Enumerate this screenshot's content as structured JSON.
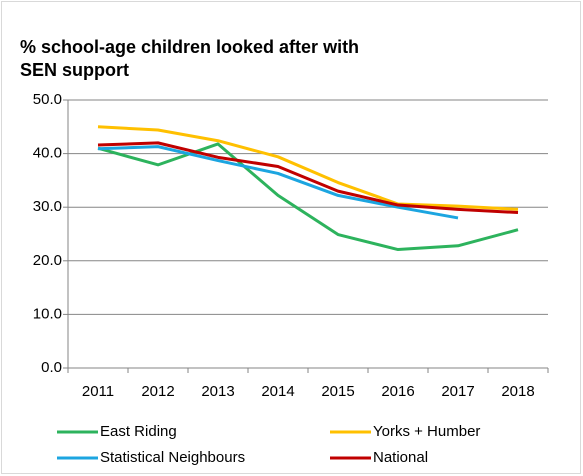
{
  "chart_data": {
    "type": "line",
    "title": "% school-age children looked after with SEN support",
    "categories": [
      "2011",
      "2012",
      "2013",
      "2014",
      "2015",
      "2016",
      "2017",
      "2018"
    ],
    "series": [
      {
        "name": "East Riding",
        "color": "#2db35d",
        "values": [
          41.0,
          37.9,
          41.8,
          32.2,
          24.9,
          22.1,
          22.8,
          25.8
        ]
      },
      {
        "name": "Yorks + Humber",
        "color": "#ffc000",
        "values": [
          45.0,
          44.4,
          42.4,
          39.4,
          34.6,
          30.6,
          30.2,
          29.6
        ]
      },
      {
        "name": "Statistical Neighbours",
        "color": "#1ca5e0",
        "values": [
          40.9,
          41.3,
          38.7,
          36.3,
          32.2,
          30.0,
          28.0,
          null
        ]
      },
      {
        "name": "National",
        "color": "#c00000",
        "values": [
          41.6,
          42.0,
          39.3,
          37.6,
          33.0,
          30.4,
          29.6,
          29.0
        ]
      }
    ],
    "ylim": [
      0,
      50
    ],
    "yticks": [
      {
        "value": 0,
        "label": "0.0"
      },
      {
        "value": 10,
        "label": "10.0"
      },
      {
        "value": 20,
        "label": "20.0"
      },
      {
        "value": 30,
        "label": "30.0"
      },
      {
        "value": 40,
        "label": "40.0"
      },
      {
        "value": 50,
        "label": "50.0"
      }
    ],
    "grid": true,
    "legend": "bottom"
  }
}
